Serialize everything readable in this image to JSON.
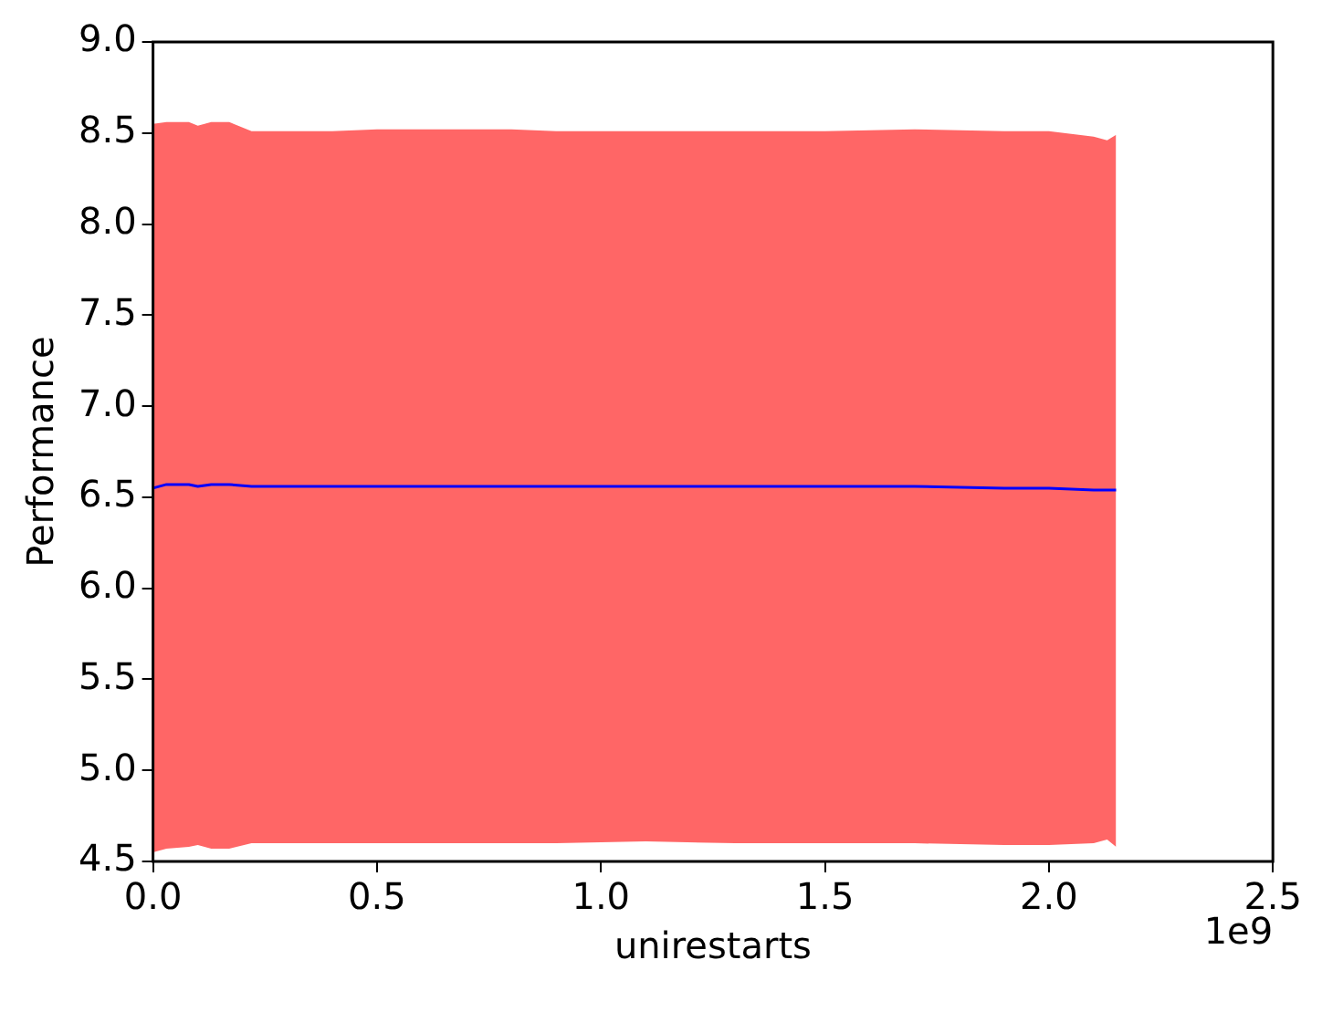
{
  "chart_data": {
    "type": "line",
    "xlabel": "unirestarts",
    "ylabel": "Performance",
    "annotations": [
      "1e9"
    ],
    "x": [
      0,
      0.03,
      0.08,
      0.1,
      0.13,
      0.17,
      0.22,
      0.4,
      0.5,
      0.6,
      0.8,
      0.9,
      1.1,
      1.3,
      1.5,
      1.7,
      1.9,
      2.0,
      2.1,
      2.13,
      2.15
    ],
    "series": [
      {
        "color": "#0000ff",
        "values": [
          6.55,
          6.57,
          6.57,
          6.56,
          6.57,
          6.57,
          6.56,
          6.56,
          6.56,
          6.56,
          6.56,
          6.56,
          6.56,
          6.56,
          6.56,
          6.56,
          6.55,
          6.55,
          6.54,
          6.54,
          6.54
        ],
        "lower": [
          4.55,
          4.57,
          4.58,
          4.59,
          4.57,
          4.57,
          4.6,
          4.6,
          4.6,
          4.6,
          4.6,
          4.6,
          4.61,
          4.6,
          4.6,
          4.6,
          4.59,
          4.59,
          4.6,
          4.62,
          4.58
        ],
        "upper": [
          8.55,
          8.56,
          8.56,
          8.54,
          8.56,
          8.56,
          8.51,
          8.51,
          8.52,
          8.52,
          8.52,
          8.51,
          8.51,
          8.51,
          8.51,
          8.52,
          8.51,
          8.51,
          8.48,
          8.46,
          8.49
        ]
      }
    ],
    "xlim": [
      0,
      2.5
    ],
    "xticks": [
      {
        "value": 0,
        "label": "0.0"
      },
      {
        "value": 0.5,
        "label": "0.5"
      },
      {
        "value": 1,
        "label": "1.0"
      },
      {
        "value": 1.5,
        "label": "1.5"
      },
      {
        "value": 2,
        "label": "2.0"
      },
      {
        "value": 2.5,
        "label": "2.5"
      }
    ],
    "ylim": [
      4.5,
      9
    ],
    "yticks": [
      {
        "value": 4.5,
        "label": "4.5"
      },
      {
        "value": 5,
        "label": "5.0"
      },
      {
        "value": 5.5,
        "label": "5.5"
      },
      {
        "value": 6,
        "label": "6.0"
      },
      {
        "value": 6.5,
        "label": "6.5"
      },
      {
        "value": 7,
        "label": "7.0"
      },
      {
        "value": 7.5,
        "label": "7.5"
      },
      {
        "value": 8,
        "label": "8.0"
      },
      {
        "value": 8.5,
        "label": "8.5"
      },
      {
        "value": 9,
        "label": "9.0"
      }
    ],
    "grid": false,
    "legend": false,
    "marker": "none"
  }
}
